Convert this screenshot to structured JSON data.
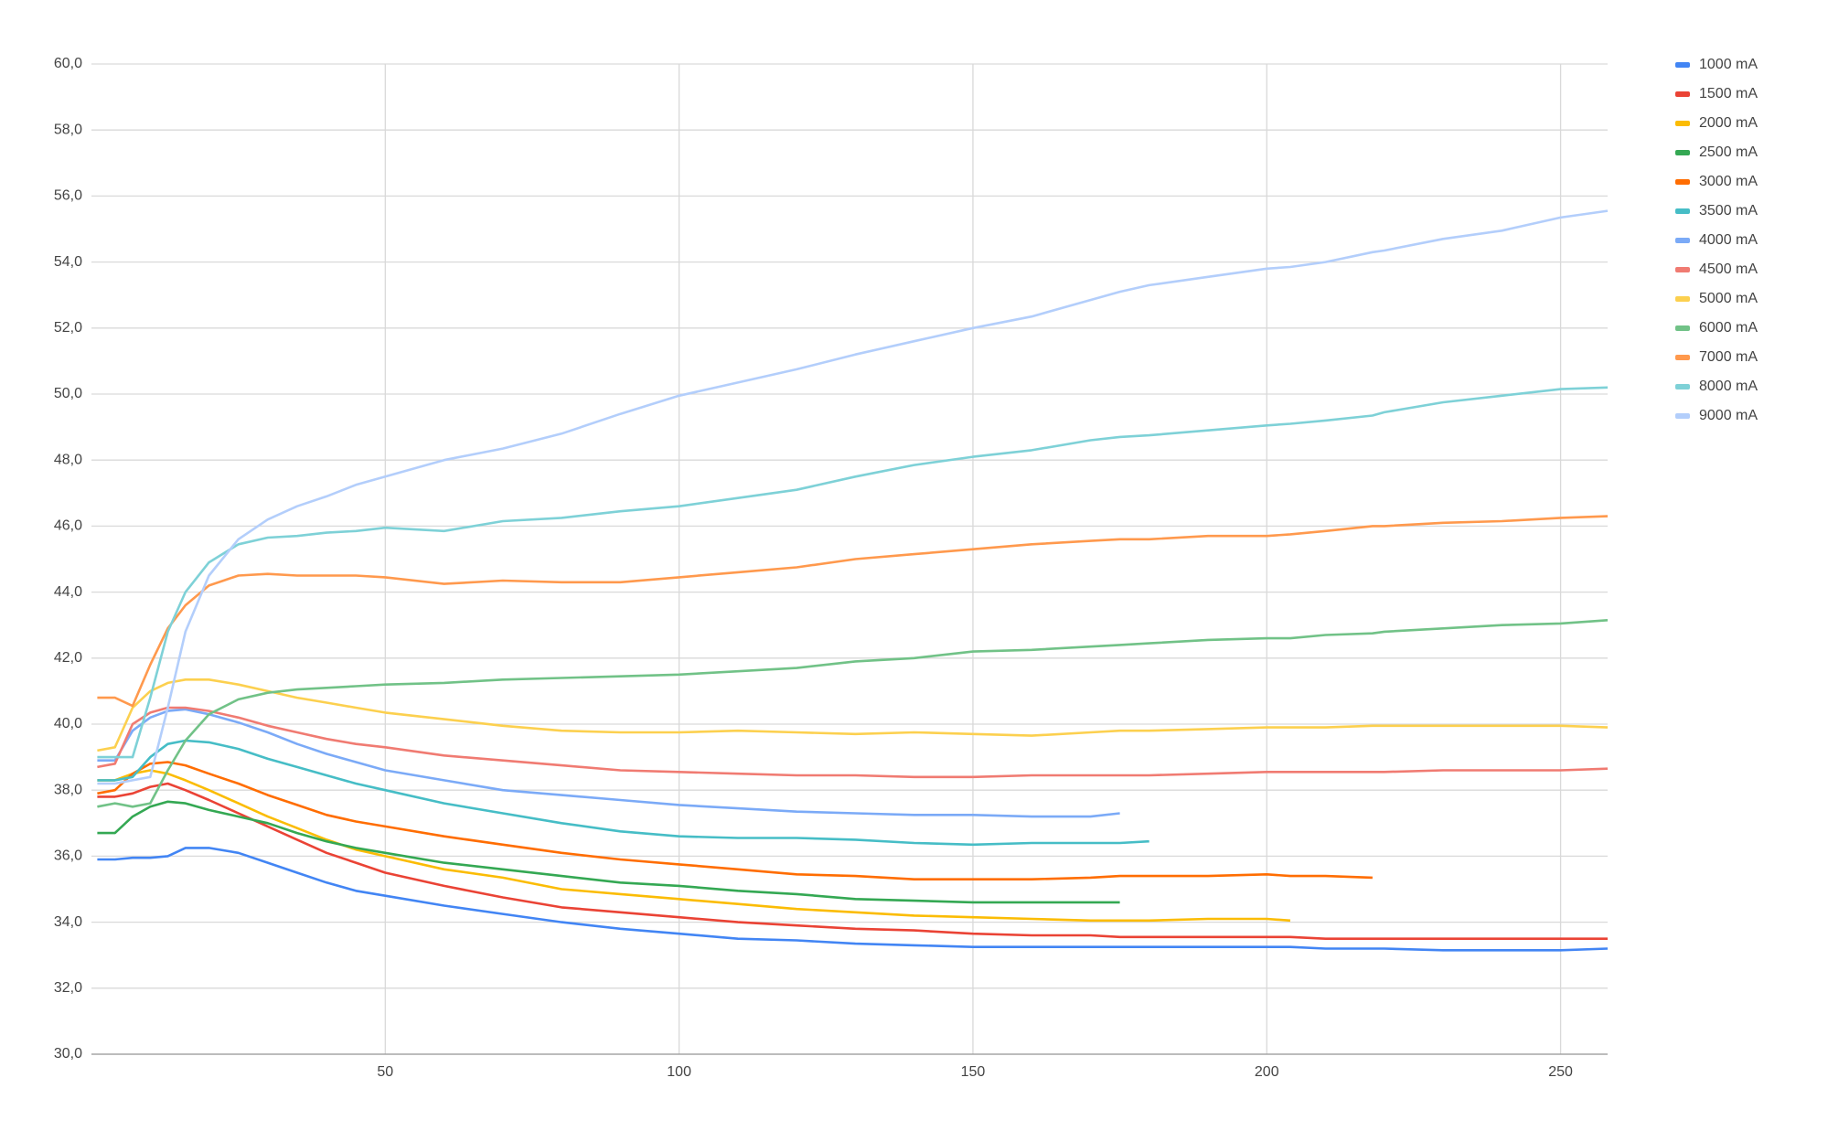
{
  "chart_data": {
    "type": "line",
    "x": [
      1,
      4,
      7,
      10,
      13,
      16,
      20,
      25,
      30,
      35,
      40,
      45,
      50,
      60,
      70,
      80,
      90,
      100,
      110,
      120,
      130,
      140,
      150,
      160,
      170,
      175,
      180,
      190,
      200,
      204,
      210,
      218,
      220,
      230,
      240,
      250,
      258
    ],
    "xlim": [
      0,
      258
    ],
    "xticks": [
      50,
      100,
      150,
      200,
      250
    ],
    "ylim": [
      30,
      60
    ],
    "yticks": [
      {
        "value": 30,
        "label": "30,0"
      },
      {
        "value": 32,
        "label": "32,0"
      },
      {
        "value": 34,
        "label": "34,0"
      },
      {
        "value": 36,
        "label": "36,0"
      },
      {
        "value": 38,
        "label": "38,0"
      },
      {
        "value": 40,
        "label": "40,0"
      },
      {
        "value": 42,
        "label": "42,0"
      },
      {
        "value": 44,
        "label": "44,0"
      },
      {
        "value": 46,
        "label": "46,0"
      },
      {
        "value": 48,
        "label": "48,0"
      },
      {
        "value": 50,
        "label": "50,0"
      },
      {
        "value": 52,
        "label": "52,0"
      },
      {
        "value": 54,
        "label": "54,0"
      },
      {
        "value": 56,
        "label": "56,0"
      },
      {
        "value": 58,
        "label": "58,0"
      },
      {
        "value": 60,
        "label": "60,0"
      }
    ],
    "grid": true,
    "legend": "right",
    "series": [
      {
        "name": "1000 mA",
        "color": "#4285f4",
        "values": [
          35.9,
          35.9,
          35.95,
          35.95,
          36.0,
          36.25,
          36.25,
          36.1,
          35.8,
          35.5,
          35.2,
          34.95,
          34.8,
          34.5,
          34.25,
          34.0,
          33.8,
          33.65,
          33.5,
          33.45,
          33.35,
          33.3,
          33.25,
          33.25,
          33.25,
          33.25,
          33.25,
          33.25,
          33.25,
          33.25,
          33.2,
          33.2,
          33.2,
          33.15,
          33.15,
          33.15,
          33.2
        ]
      },
      {
        "name": "1500 mA",
        "color": "#ea4335",
        "values": [
          37.8,
          37.8,
          37.9,
          38.1,
          38.2,
          38.0,
          37.7,
          37.3,
          36.9,
          36.5,
          36.1,
          35.8,
          35.5,
          35.1,
          34.75,
          34.45,
          34.3,
          34.15,
          34.0,
          33.9,
          33.8,
          33.75,
          33.65,
          33.6,
          33.6,
          33.55,
          33.55,
          33.55,
          33.55,
          33.55,
          33.5,
          33.5,
          33.5,
          33.5,
          33.5,
          33.5,
          33.5
        ]
      },
      {
        "name": "2000 mA",
        "color": "#fbbc04",
        "values": [
          38.3,
          38.3,
          38.5,
          38.6,
          38.5,
          38.3,
          38.0,
          37.6,
          37.2,
          36.85,
          36.5,
          36.2,
          36.0,
          35.6,
          35.35,
          35.0,
          34.85,
          34.7,
          34.55,
          34.4,
          34.3,
          34.2,
          34.15,
          34.1,
          34.05,
          34.05,
          34.05,
          34.1,
          34.1,
          34.05,
          null,
          null,
          null,
          null,
          null,
          null,
          null
        ]
      },
      {
        "name": "2500 mA",
        "color": "#34a853",
        "values": [
          36.7,
          36.7,
          37.2,
          37.5,
          37.65,
          37.6,
          37.4,
          37.2,
          37.0,
          36.7,
          36.45,
          36.25,
          36.1,
          35.8,
          35.6,
          35.4,
          35.2,
          35.1,
          34.95,
          34.85,
          34.7,
          34.65,
          34.6,
          34.6,
          34.6,
          34.6,
          null,
          null,
          null,
          null,
          null,
          null,
          null,
          null,
          null,
          null,
          null
        ]
      },
      {
        "name": "3000 mA",
        "color": "#ff6d01",
        "values": [
          37.9,
          38.0,
          38.5,
          38.8,
          38.85,
          38.75,
          38.5,
          38.2,
          37.85,
          37.55,
          37.25,
          37.05,
          36.9,
          36.6,
          36.35,
          36.1,
          35.9,
          35.75,
          35.6,
          35.45,
          35.4,
          35.3,
          35.3,
          35.3,
          35.35,
          35.4,
          35.4,
          35.4,
          35.45,
          35.4,
          35.4,
          35.35,
          null,
          null,
          null,
          null,
          null
        ]
      },
      {
        "name": "3500 mA",
        "color": "#46bdc6",
        "values": [
          38.3,
          38.3,
          38.4,
          39.0,
          39.4,
          39.5,
          39.45,
          39.25,
          38.95,
          38.7,
          38.45,
          38.2,
          38.0,
          37.6,
          37.3,
          37.0,
          36.75,
          36.6,
          36.55,
          36.55,
          36.5,
          36.4,
          36.35,
          36.4,
          36.4,
          36.4,
          36.45,
          null,
          null,
          null,
          null,
          null,
          null,
          null,
          null,
          null,
          null
        ]
      },
      {
        "name": "4000 mA",
        "color": "#7baaf7",
        "values": [
          38.9,
          38.9,
          39.8,
          40.2,
          40.4,
          40.45,
          40.3,
          40.05,
          39.75,
          39.4,
          39.1,
          38.85,
          38.6,
          38.3,
          38.0,
          37.85,
          37.7,
          37.55,
          37.45,
          37.35,
          37.3,
          37.25,
          37.25,
          37.2,
          37.2,
          37.3,
          null,
          null,
          null,
          null,
          null,
          null,
          null,
          null,
          null,
          null,
          null
        ]
      },
      {
        "name": "4500 mA",
        "color": "#f07b72",
        "values": [
          38.7,
          38.8,
          40.0,
          40.35,
          40.5,
          40.5,
          40.4,
          40.2,
          39.95,
          39.75,
          39.55,
          39.4,
          39.3,
          39.05,
          38.9,
          38.75,
          38.6,
          38.55,
          38.5,
          38.45,
          38.45,
          38.4,
          38.4,
          38.45,
          38.45,
          38.45,
          38.45,
          38.5,
          38.55,
          38.55,
          38.55,
          38.55,
          38.55,
          38.6,
          38.6,
          38.6,
          38.65
        ]
      },
      {
        "name": "5000 mA",
        "color": "#fcd04f",
        "values": [
          39.2,
          39.3,
          40.5,
          41.0,
          41.25,
          41.35,
          41.35,
          41.2,
          41.0,
          40.8,
          40.65,
          40.5,
          40.35,
          40.15,
          39.95,
          39.8,
          39.75,
          39.75,
          39.8,
          39.75,
          39.7,
          39.75,
          39.7,
          39.65,
          39.75,
          39.8,
          39.8,
          39.85,
          39.9,
          39.9,
          39.9,
          39.95,
          39.95,
          39.95,
          39.95,
          39.95,
          39.9
        ]
      },
      {
        "name": "6000 mA",
        "color": "#71c287",
        "values": [
          37.5,
          37.6,
          37.5,
          37.6,
          38.6,
          39.5,
          40.3,
          40.75,
          40.95,
          41.05,
          41.1,
          41.15,
          41.2,
          41.25,
          41.35,
          41.4,
          41.45,
          41.5,
          41.6,
          41.7,
          41.9,
          42.0,
          42.2,
          42.25,
          42.35,
          42.4,
          42.45,
          42.55,
          42.6,
          42.6,
          42.7,
          42.75,
          42.8,
          42.9,
          43.0,
          43.05,
          43.15
        ]
      },
      {
        "name": "7000 mA",
        "color": "#ff994d",
        "values": [
          40.8,
          40.8,
          40.55,
          41.8,
          42.9,
          43.6,
          44.2,
          44.5,
          44.55,
          44.5,
          44.5,
          44.5,
          44.45,
          44.25,
          44.35,
          44.3,
          44.3,
          44.45,
          44.6,
          44.75,
          45.0,
          45.15,
          45.3,
          45.45,
          45.55,
          45.6,
          45.6,
          45.7,
          45.7,
          45.75,
          45.85,
          46.0,
          46.0,
          46.1,
          46.15,
          46.25,
          46.3
        ]
      },
      {
        "name": "8000 mA",
        "color": "#7ed1d7",
        "values": [
          39.0,
          39.0,
          39.0,
          40.8,
          42.8,
          44.0,
          44.9,
          45.45,
          45.65,
          45.7,
          45.8,
          45.85,
          45.95,
          45.85,
          46.15,
          46.25,
          46.45,
          46.6,
          46.85,
          47.1,
          47.5,
          47.85,
          48.1,
          48.3,
          48.6,
          48.7,
          48.75,
          48.9,
          49.05,
          49.1,
          49.2,
          49.35,
          49.45,
          49.75,
          49.95,
          50.15,
          50.2
        ]
      },
      {
        "name": "9000 mA",
        "color": "#b3cefb",
        "values": [
          38.2,
          38.2,
          38.3,
          38.4,
          40.5,
          42.8,
          44.5,
          45.6,
          46.2,
          46.6,
          46.9,
          47.25,
          47.5,
          48.0,
          48.35,
          48.8,
          49.4,
          49.95,
          50.35,
          50.75,
          51.2,
          51.6,
          52.0,
          52.35,
          52.85,
          53.1,
          53.3,
          53.55,
          53.8,
          53.85,
          54.0,
          54.3,
          54.35,
          54.7,
          54.95,
          55.35,
          55.55
        ]
      }
    ]
  }
}
